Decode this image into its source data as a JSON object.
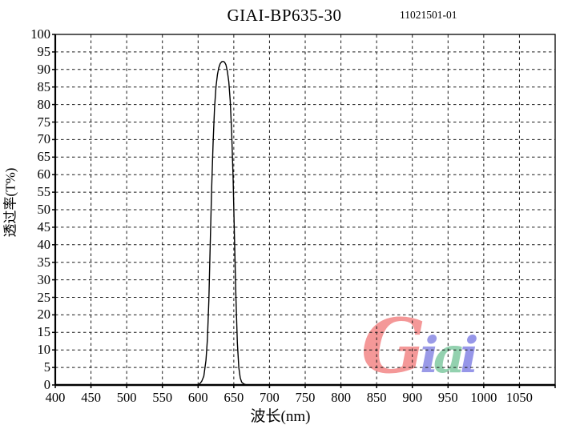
{
  "header": {
    "title": "GIAI-BP635-30",
    "code": "11021501-01"
  },
  "chart_data": {
    "type": "line",
    "title": "GIAI-BP635-30",
    "subtitle": "11021501-01",
    "xlabel": "波长(nm)",
    "ylabel": "透过率(T%)",
    "xlim": [
      400,
      1100
    ],
    "ylim": [
      0,
      100
    ],
    "x_ticks": [
      400,
      450,
      500,
      550,
      600,
      650,
      700,
      750,
      800,
      850,
      900,
      950,
      1000,
      1050
    ],
    "y_ticks": [
      0,
      5,
      10,
      15,
      20,
      25,
      30,
      35,
      40,
      45,
      50,
      55,
      60,
      65,
      70,
      75,
      80,
      85,
      90,
      95,
      100
    ],
    "grid": {
      "style": "dashed",
      "x_step": 50,
      "y_step": 5,
      "color": "#1a1a1a"
    },
    "axis_color": "#000000",
    "legend": "none",
    "series": [
      {
        "name": "transmittance",
        "color": "#000000",
        "points": [
          [
            400,
            0
          ],
          [
            500,
            0
          ],
          [
            560,
            0
          ],
          [
            590,
            0
          ],
          [
            598,
            0
          ],
          [
            602,
            0.3
          ],
          [
            605,
            1
          ],
          [
            608,
            2.5
          ],
          [
            611,
            7
          ],
          [
            613,
            13
          ],
          [
            615,
            24
          ],
          [
            617,
            40
          ],
          [
            619,
            56
          ],
          [
            621,
            69
          ],
          [
            623,
            79
          ],
          [
            625,
            85
          ],
          [
            627,
            88.5
          ],
          [
            629,
            90.5
          ],
          [
            631,
            91.7
          ],
          [
            633,
            92.2
          ],
          [
            635,
            92.3
          ],
          [
            637,
            92.1
          ],
          [
            639,
            91.3
          ],
          [
            641,
            89.5
          ],
          [
            643,
            86.5
          ],
          [
            645,
            81
          ],
          [
            647,
            72
          ],
          [
            649,
            59
          ],
          [
            651,
            42
          ],
          [
            653,
            25
          ],
          [
            655,
            12
          ],
          [
            657,
            5
          ],
          [
            659,
            2
          ],
          [
            661,
            0.8
          ],
          [
            664,
            0.3
          ],
          [
            668,
            0
          ],
          [
            700,
            0
          ],
          [
            800,
            0
          ],
          [
            900,
            0
          ],
          [
            1000,
            0
          ],
          [
            1100,
            0
          ]
        ]
      }
    ]
  },
  "logo": {
    "text": "Giai",
    "letters": [
      {
        "char": "G",
        "color": "#f28282"
      },
      {
        "char": "i",
        "color": "#8585e2"
      },
      {
        "char": "a",
        "color": "#7cc79e"
      },
      {
        "char": "i",
        "color": "#8080e4"
      }
    ]
  }
}
